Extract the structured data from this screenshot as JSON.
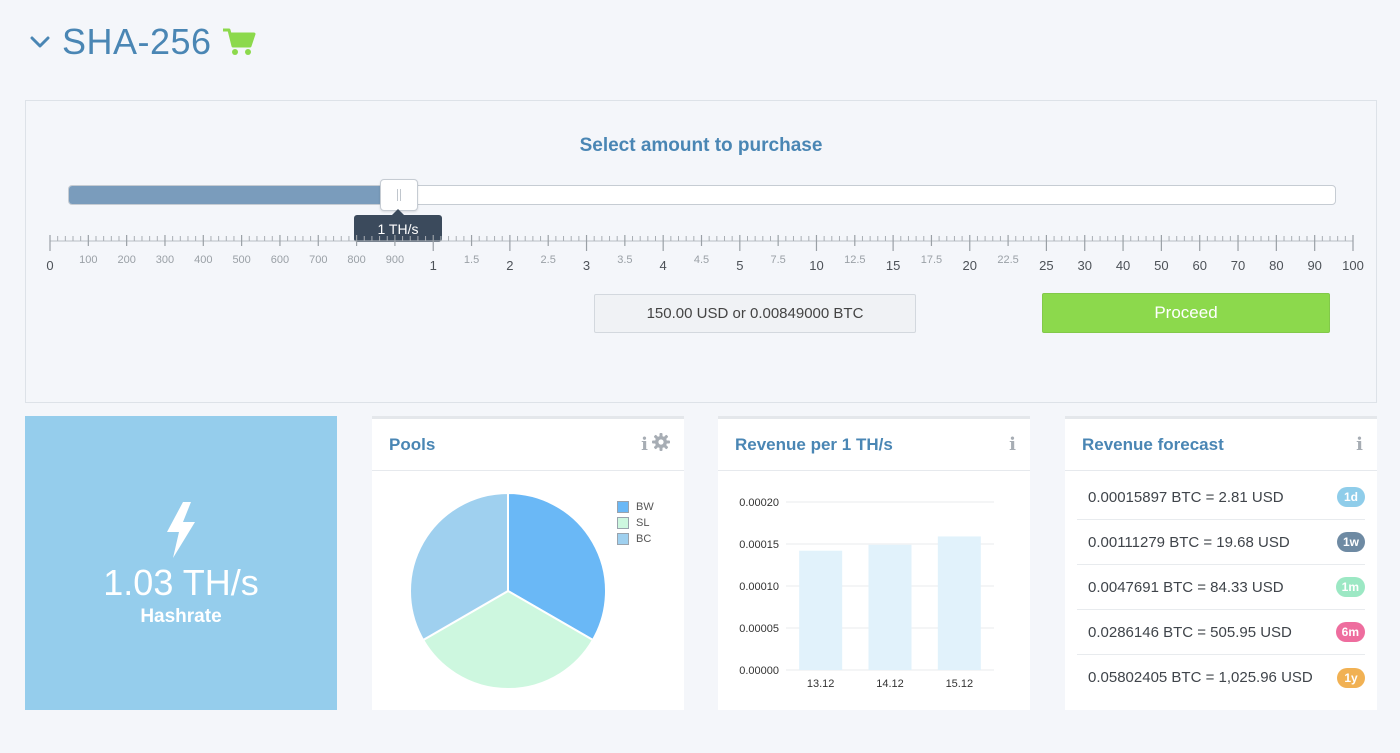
{
  "header": {
    "title": "SHA-256"
  },
  "purchase": {
    "title": "Select amount to purchase",
    "slider_value_label": "1 TH/s",
    "slider_fraction": 0.26,
    "tick_labels": [
      {
        "label": "0",
        "major": true
      },
      {
        "label": "100",
        "major": false
      },
      {
        "label": "200",
        "major": false
      },
      {
        "label": "300",
        "major": false
      },
      {
        "label": "400",
        "major": false
      },
      {
        "label": "500",
        "major": false
      },
      {
        "label": "600",
        "major": false
      },
      {
        "label": "700",
        "major": false
      },
      {
        "label": "800",
        "major": false
      },
      {
        "label": "900",
        "major": false
      },
      {
        "label": "1",
        "major": true
      },
      {
        "label": "1.5",
        "major": false
      },
      {
        "label": "2",
        "major": true
      },
      {
        "label": "2.5",
        "major": false
      },
      {
        "label": "3",
        "major": true
      },
      {
        "label": "3.5",
        "major": false
      },
      {
        "label": "4",
        "major": true
      },
      {
        "label": "4.5",
        "major": false
      },
      {
        "label": "5",
        "major": true
      },
      {
        "label": "7.5",
        "major": false
      },
      {
        "label": "10",
        "major": true
      },
      {
        "label": "12.5",
        "major": false
      },
      {
        "label": "15",
        "major": true
      },
      {
        "label": "17.5",
        "major": false
      },
      {
        "label": "20",
        "major": true
      },
      {
        "label": "22.5",
        "major": false
      },
      {
        "label": "25",
        "major": true
      },
      {
        "label": "30",
        "major": true
      },
      {
        "label": "40",
        "major": true
      },
      {
        "label": "50",
        "major": true
      },
      {
        "label": "60",
        "major": true
      },
      {
        "label": "70",
        "major": true
      },
      {
        "label": "80",
        "major": true
      },
      {
        "label": "90",
        "major": true
      },
      {
        "label": "100",
        "major": true
      }
    ],
    "price_text": "150.00 USD or 0.00849000 BTC",
    "proceed_label": "Proceed"
  },
  "hashrate": {
    "value": "1.03 TH/s",
    "label": "Hashrate"
  },
  "pools": {
    "title": "Pools",
    "slices": [
      {
        "name": "BW",
        "value": 33.33,
        "color": "#6ab8f6"
      },
      {
        "name": "SL",
        "value": 33.33,
        "color": "#cdf7df"
      },
      {
        "name": "BC",
        "value": 33.34,
        "color": "#9fd0ef"
      }
    ]
  },
  "revenue": {
    "title": "Revenue per 1 TH/s"
  },
  "chart_data": {
    "type": "bar",
    "title": "Revenue per 1 TH/s",
    "categories": [
      "13.12",
      "14.12",
      "15.12"
    ],
    "values": [
      0.000142,
      0.000149,
      0.000159
    ],
    "ylim": [
      0,
      0.0002
    ],
    "yticks": [
      "0.00000",
      "0.00005",
      "0.00010",
      "0.00015",
      "0.00020"
    ],
    "ytick_values": [
      0,
      5e-05,
      0.0001,
      0.00015,
      0.0002
    ],
    "grid": true,
    "bar_color": "#e1f2fb"
  },
  "forecast": {
    "title": "Revenue forecast",
    "rows": [
      {
        "text": "0.00015897 BTC = 2.81 USD",
        "badge": "1d",
        "color": "#8fcdea"
      },
      {
        "text": "0.00111279 BTC = 19.68 USD",
        "badge": "1w",
        "color": "#6e8aa3"
      },
      {
        "text": "0.0047691 BTC = 84.33 USD",
        "badge": "1m",
        "color": "#9ce8c4"
      },
      {
        "text": "0.0286146 BTC = 505.95 USD",
        "badge": "6m",
        "color": "#ee6d9e"
      },
      {
        "text": "0.05802405 BTC = 1,025.96 USD",
        "badge": "1y",
        "color": "#f1b153"
      }
    ]
  }
}
